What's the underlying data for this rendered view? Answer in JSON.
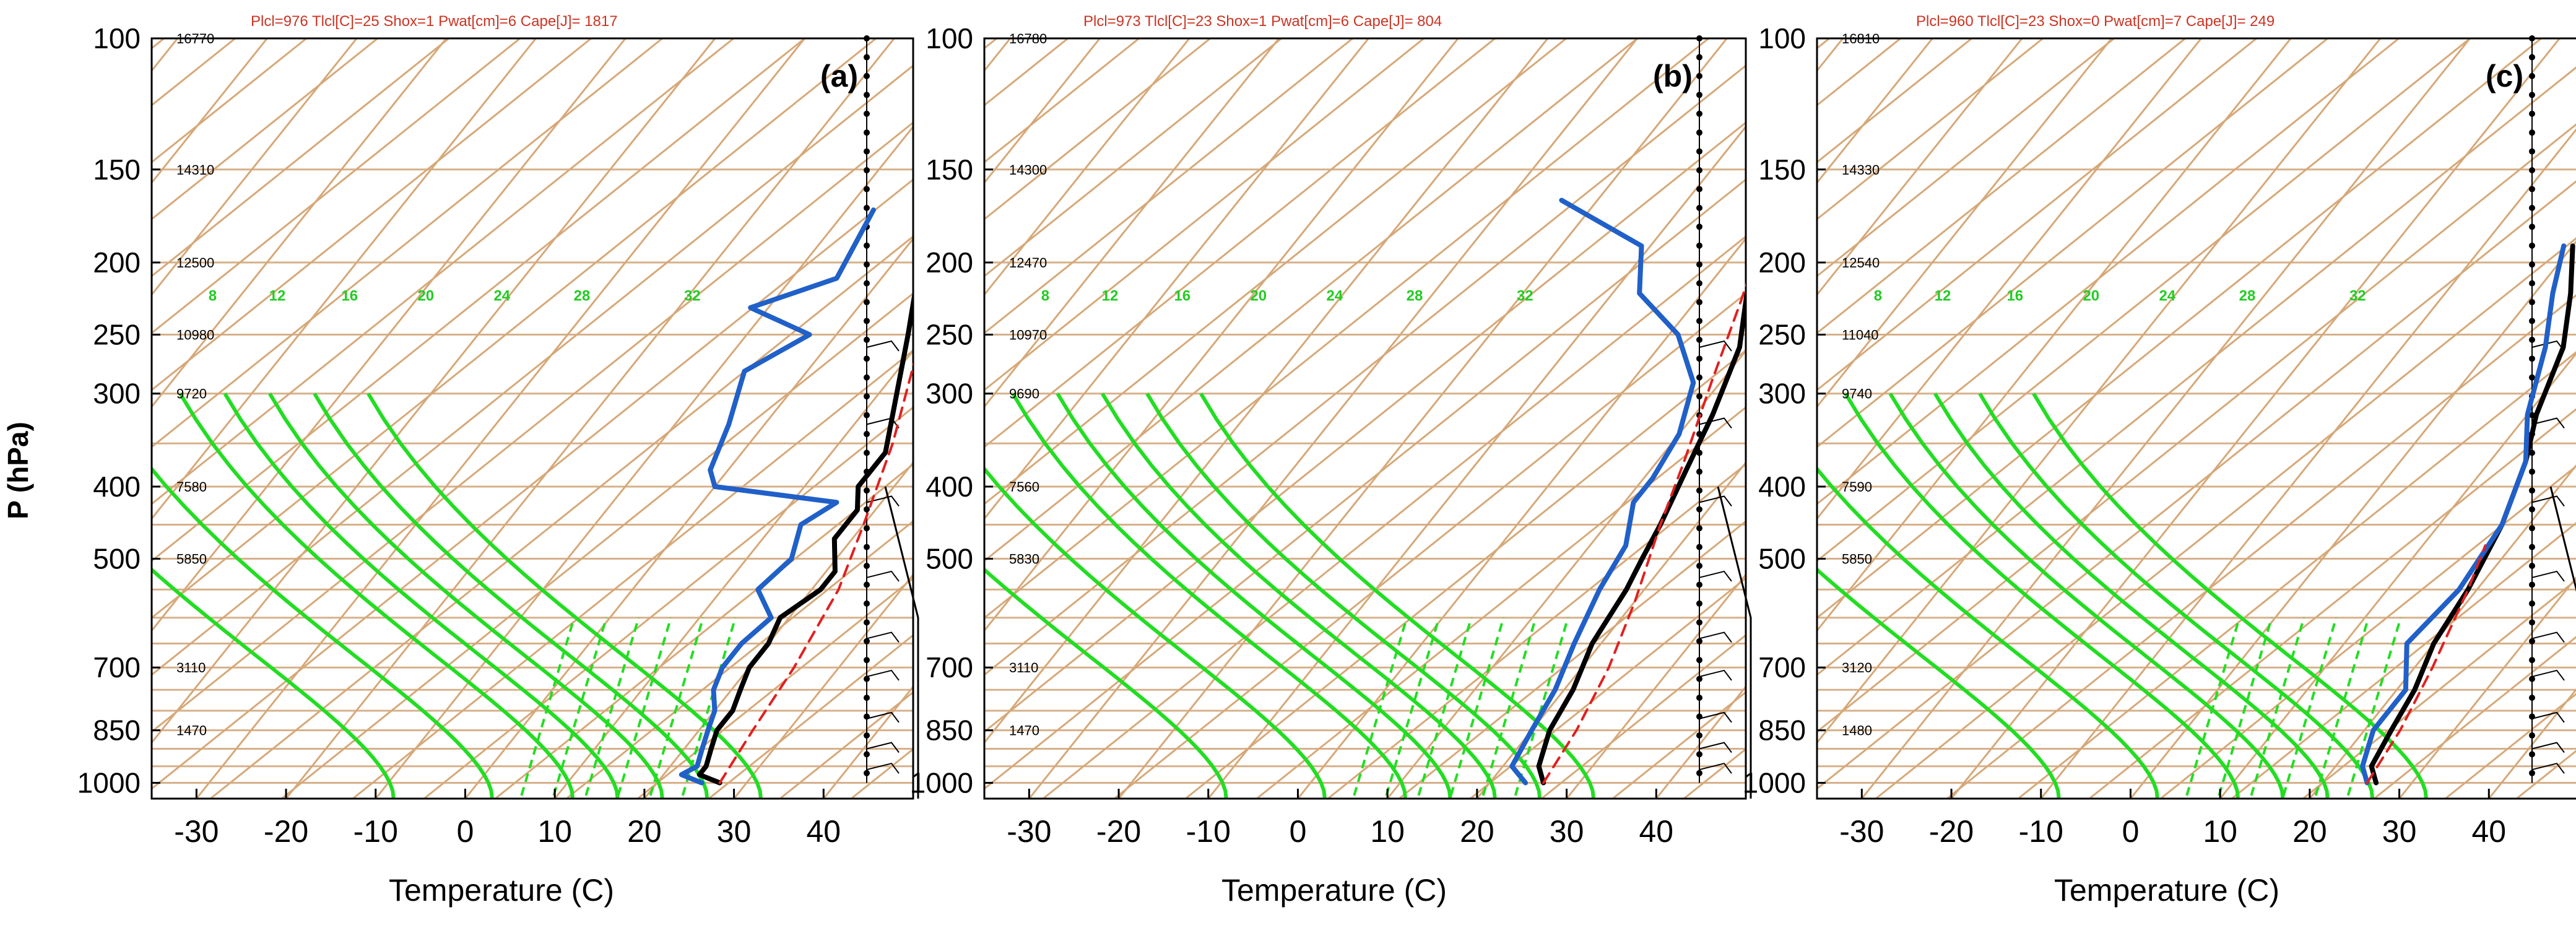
{
  "figure": {
    "y_axis_label": "P (hPa)",
    "x_axis_label": "Temperature (C)"
  },
  "chart_data": [
    {
      "type": "line",
      "panel_label": "(a)",
      "header": "Plcl=976 Tlcl[C]=25 Shox=1 Pwat[cm]=6 Cape[J]= 1817",
      "xlabel": "Temperature (C)",
      "ylabel": "P (hPa)",
      "xlim": [
        -35,
        50
      ],
      "ylim": [
        1050,
        100
      ],
      "y_scale": "log",
      "x_ticks": [
        "-30",
        "-20",
        "-10",
        "0",
        "10",
        "20",
        "30",
        "40"
      ],
      "y_ticks": [
        "100",
        "150",
        "200",
        "250",
        "300",
        "400",
        "500",
        "700",
        "850",
        "1000"
      ],
      "height_labels": [
        {
          "p": 100,
          "text": "16770"
        },
        {
          "p": 150,
          "text": "14310"
        },
        {
          "p": 200,
          "text": "12500"
        },
        {
          "p": 250,
          "text": "10980"
        },
        {
          "p": 300,
          "text": "9720"
        },
        {
          "p": 400,
          "text": "7580"
        },
        {
          "p": 500,
          "text": "5850"
        },
        {
          "p": 700,
          "text": "3110"
        },
        {
          "p": 850,
          "text": "1470"
        }
      ],
      "mixing_ratio_labels": [
        "8",
        "12",
        "16",
        "20",
        "24",
        "28",
        "32"
      ],
      "series": [
        {
          "role": "temperature",
          "color": "#000000",
          "points": [
            [
              27,
              1000
            ],
            [
              24,
              975
            ],
            [
              24,
              950
            ],
            [
              23,
              900
            ],
            [
              22,
              850
            ],
            [
              22,
              800
            ],
            [
              21,
              750
            ],
            [
              20,
              700
            ],
            [
              20,
              650
            ],
            [
              19,
              600
            ],
            [
              21,
              550
            ],
            [
              21,
              520
            ],
            [
              18,
              470
            ],
            [
              18,
              430
            ],
            [
              16,
              400
            ],
            [
              16,
              360
            ],
            [
              12,
              300
            ],
            [
              8,
              250
            ],
            [
              4,
              210
            ],
            [
              1,
              185
            ]
          ]
        },
        {
          "role": "dewpoint",
          "color": "#2060c8",
          "points": [
            [
              25,
              1000
            ],
            [
              22,
              975
            ],
            [
              23,
              950
            ],
            [
              22,
              900
            ],
            [
              21,
              850
            ],
            [
              20,
              800
            ],
            [
              18,
              750
            ],
            [
              17,
              700
            ],
            [
              17,
              650
            ],
            [
              18,
              600
            ],
            [
              14,
              550
            ],
            [
              15,
              500
            ],
            [
              13,
              450
            ],
            [
              15,
              420
            ],
            [
              0,
              400
            ],
            [
              -2,
              380
            ],
            [
              -4,
              330
            ],
            [
              -7,
              280
            ],
            [
              -3,
              250
            ],
            [
              -12,
              230
            ],
            [
              -5,
              210
            ],
            [
              -7,
              170
            ]
          ]
        },
        {
          "role": "parcel",
          "color": "#e02020",
          "dashed": true,
          "points": [
            [
              27,
              1000
            ],
            [
              26,
              850
            ],
            [
              25,
              700
            ],
            [
              23,
              550
            ],
            [
              20,
              450
            ],
            [
              16,
              350
            ],
            [
              11,
              270
            ],
            [
              6,
              210
            ],
            [
              2,
              180
            ]
          ]
        }
      ]
    },
    {
      "type": "line",
      "panel_label": "(b)",
      "header": "Plcl=973 Tlcl[C]=23 Shox=1 Pwat[cm]=6 Cape[J]= 804",
      "xlabel": "Temperature (C)",
      "ylabel": "P (hPa)",
      "xlim": [
        -35,
        50
      ],
      "ylim": [
        1050,
        100
      ],
      "y_scale": "log",
      "x_ticks": [
        "-30",
        "-20",
        "-10",
        "0",
        "10",
        "20",
        "30",
        "40"
      ],
      "y_ticks": [
        "100",
        "150",
        "200",
        "250",
        "300",
        "400",
        "500",
        "700",
        "850",
        "1000"
      ],
      "height_labels": [
        {
          "p": 100,
          "text": "16780"
        },
        {
          "p": 150,
          "text": "14300"
        },
        {
          "p": 200,
          "text": "12470"
        },
        {
          "p": 250,
          "text": "10970"
        },
        {
          "p": 300,
          "text": "9690"
        },
        {
          "p": 400,
          "text": "7560"
        },
        {
          "p": 500,
          "text": "5830"
        },
        {
          "p": 700,
          "text": "3110"
        },
        {
          "p": 850,
          "text": "1470"
        }
      ],
      "mixing_ratio_labels": [
        "8",
        "12",
        "16",
        "20",
        "24",
        "28",
        "32"
      ],
      "series": [
        {
          "role": "temperature",
          "color": "#000000",
          "points": [
            [
              26,
              1000
            ],
            [
              24,
              950
            ],
            [
              22,
              850
            ],
            [
              21,
              750
            ],
            [
              19,
              650
            ],
            [
              18,
              550
            ],
            [
              17,
              500
            ],
            [
              16,
              450
            ],
            [
              14,
              380
            ],
            [
              12,
              320
            ],
            [
              9,
              260
            ],
            [
              5,
              220
            ],
            [
              2,
              190
            ],
            [
              5,
              170
            ]
          ]
        },
        {
          "role": "dewpoint",
          "color": "#2060c8",
          "points": [
            [
              24,
              1000
            ],
            [
              21,
              950
            ],
            [
              20,
              850
            ],
            [
              19,
              750
            ],
            [
              17,
              650
            ],
            [
              15,
              550
            ],
            [
              14,
              480
            ],
            [
              11,
              420
            ],
            [
              11,
              390
            ],
            [
              10,
              340
            ],
            [
              7,
              290
            ],
            [
              1,
              250
            ],
            [
              -7,
              220
            ],
            [
              -11,
              190
            ],
            [
              -24,
              165
            ]
          ]
        },
        {
          "role": "parcel",
          "color": "#e02020",
          "dashed": true,
          "points": [
            [
              26,
              1000
            ],
            [
              25,
              850
            ],
            [
              23,
              700
            ],
            [
              20,
              570
            ],
            [
              16,
              450
            ],
            [
              13,
              370
            ],
            [
              9,
              290
            ],
            [
              5,
              225
            ],
            [
              3,
              200
            ]
          ]
        }
      ]
    },
    {
      "type": "line",
      "panel_label": "(c)",
      "header": "Plcl=960 Tlcl[C]=23 Shox=0 Pwat[cm]=7 Cape[J]= 249",
      "xlabel": "Temperature (C)",
      "ylabel": "P (hPa)",
      "xlim": [
        -35,
        50
      ],
      "ylim": [
        1050,
        100
      ],
      "y_scale": "log",
      "x_ticks": [
        "-30",
        "-20",
        "-10",
        "0",
        "10",
        "20",
        "30",
        "40"
      ],
      "y_ticks": [
        "100",
        "150",
        "200",
        "250",
        "300",
        "400",
        "500",
        "700",
        "850",
        "1000"
      ],
      "height_labels": [
        {
          "p": 100,
          "text": "16810"
        },
        {
          "p": 150,
          "text": "14330"
        },
        {
          "p": 200,
          "text": "12540"
        },
        {
          "p": 250,
          "text": "11040"
        },
        {
          "p": 300,
          "text": "9740"
        },
        {
          "p": 400,
          "text": "7590"
        },
        {
          "p": 500,
          "text": "5850"
        },
        {
          "p": 700,
          "text": "3120"
        },
        {
          "p": 850,
          "text": "1480"
        }
      ],
      "mixing_ratio_labels": [
        "8",
        "12",
        "16",
        "20",
        "24",
        "28",
        "32"
      ],
      "series": [
        {
          "role": "temperature",
          "color": "#000000",
          "points": [
            [
              26,
              1000
            ],
            [
              24,
              950
            ],
            [
              23,
              850
            ],
            [
              22,
              750
            ],
            [
              20,
              650
            ],
            [
              19,
              550
            ],
            [
              17,
              450
            ],
            [
              14,
              370
            ],
            [
              11,
              320
            ],
            [
              8,
              260
            ],
            [
              4,
              220
            ],
            [
              0,
              190
            ]
          ]
        },
        {
          "role": "dewpoint",
          "color": "#2060c8",
          "points": [
            [
              25,
              1000
            ],
            [
              23,
              950
            ],
            [
              21,
              850
            ],
            [
              21,
              750
            ],
            [
              17,
              650
            ],
            [
              18,
              550
            ],
            [
              17,
              450
            ],
            [
              14,
              370
            ],
            [
              10,
              320
            ],
            [
              6,
              260
            ],
            [
              2,
              220
            ],
            [
              -1,
              190
            ]
          ]
        },
        {
          "role": "parcel",
          "color": "#e02020",
          "dashed": true,
          "points": [
            [
              25,
              1000
            ],
            [
              24,
              850
            ],
            [
              22,
              700
            ],
            [
              19,
              550
            ],
            [
              17,
              480
            ]
          ]
        }
      ]
    }
  ]
}
